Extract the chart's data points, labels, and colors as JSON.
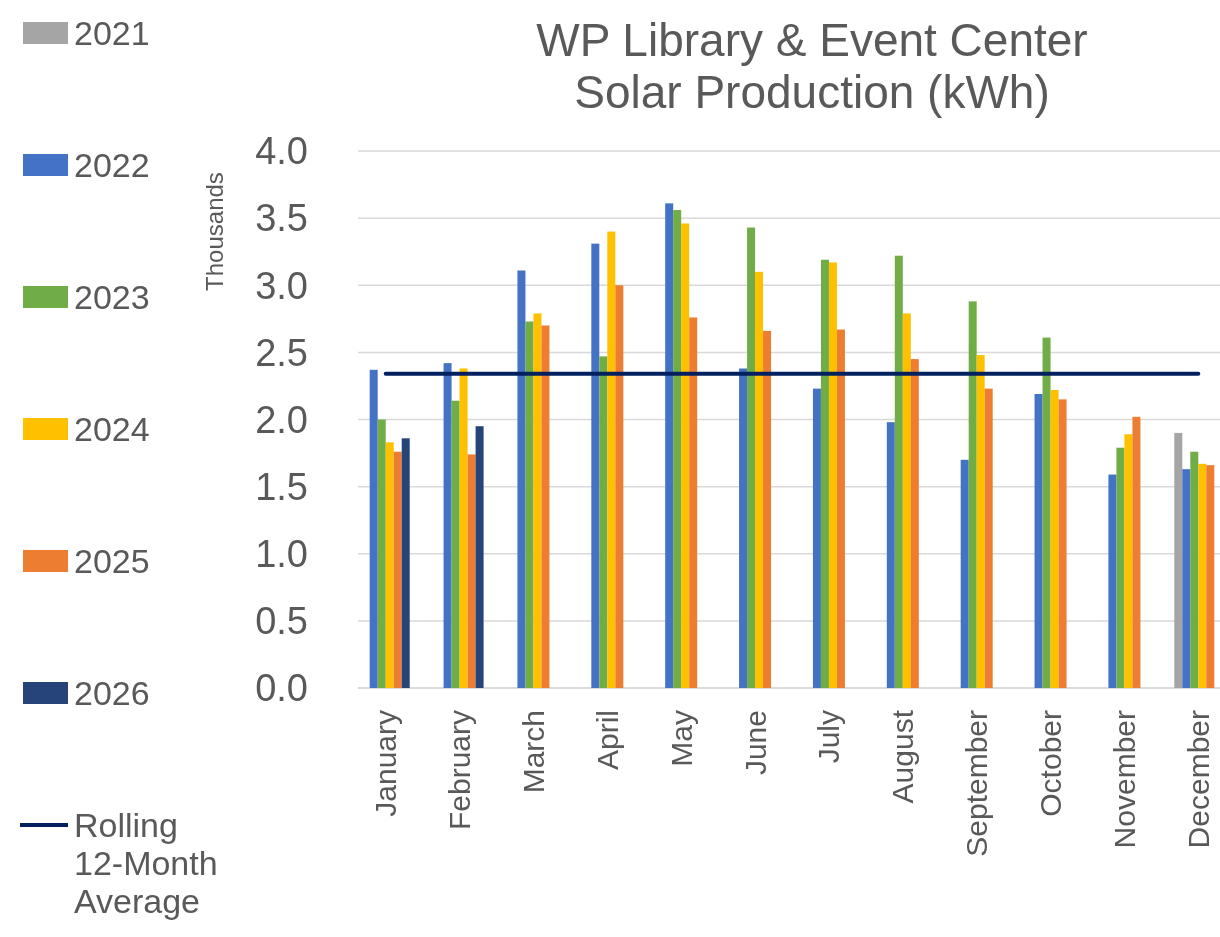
{
  "chart_data": {
    "type": "bar",
    "title": "WP Library & Event Center Solar Production (kWh)",
    "ylabel": "Thousands",
    "categories": [
      "January",
      "February",
      "March",
      "April",
      "May",
      "June",
      "July",
      "August",
      "September",
      "October",
      "November",
      "December"
    ],
    "series": [
      {
        "name": "2021",
        "color": "#a5a5a5",
        "values": [
          null,
          null,
          null,
          null,
          null,
          null,
          null,
          null,
          null,
          null,
          null,
          1.9
        ]
      },
      {
        "name": "2022",
        "color": "#4472c4",
        "values": [
          2.37,
          2.42,
          3.11,
          3.31,
          3.61,
          2.38,
          2.23,
          1.98,
          1.7,
          2.19,
          1.59,
          1.63
        ]
      },
      {
        "name": "2023",
        "color": "#70ad47",
        "values": [
          2.0,
          2.14,
          2.73,
          2.47,
          3.56,
          3.43,
          3.19,
          3.22,
          2.88,
          2.61,
          1.79,
          1.76
        ]
      },
      {
        "name": "2024",
        "color": "#ffc000",
        "values": [
          1.83,
          2.38,
          2.79,
          3.4,
          3.46,
          3.1,
          3.17,
          2.79,
          2.48,
          2.22,
          1.89,
          1.67
        ]
      },
      {
        "name": "2025",
        "color": "#ed7d31",
        "values": [
          1.76,
          1.74,
          2.7,
          3.0,
          2.76,
          2.66,
          2.67,
          2.45,
          2.23,
          2.15,
          2.02,
          1.66
        ]
      },
      {
        "name": "2026",
        "color": "#264478",
        "values": [
          1.86,
          1.95,
          null,
          null,
          null,
          null,
          null,
          null,
          null,
          null,
          null,
          null
        ]
      },
      {
        "name": "Rolling 12-Month Average",
        "type": "line",
        "color": "#002060",
        "values": [
          2.34,
          2.34,
          2.34,
          2.34,
          2.34,
          2.34,
          2.34,
          2.34,
          2.34,
          2.34,
          2.34,
          2.34
        ]
      }
    ],
    "ylim": [
      0,
      4
    ],
    "yticks": [
      {
        "value": 0,
        "label": "0.0"
      },
      0.5,
      {
        "value": 1,
        "label": "1.0"
      },
      1.5,
      {
        "value": 2,
        "label": "2.0"
      },
      2.5,
      {
        "value": 3,
        "label": "3.0"
      },
      3.5,
      {
        "value": 4,
        "label": "4.0"
      }
    ],
    "grid": "y",
    "legend": "left",
    "marker": "none",
    "line_style": "solid"
  }
}
